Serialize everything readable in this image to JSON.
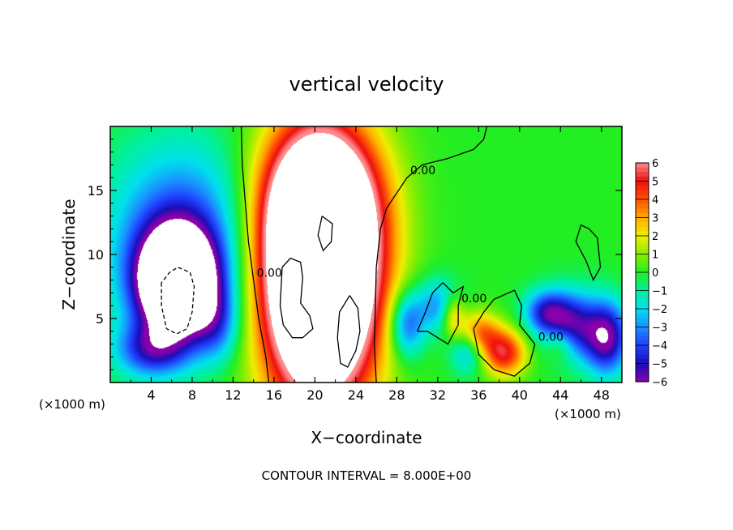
{
  "chart_data": {
    "type": "heatmap",
    "title": "vertical velocity",
    "xlabel": "X−coordinate",
    "ylabel": "Z−coordinate",
    "x_unit_label": "(×1000 m)",
    "footer": "CONTOUR INTERVAL = 8.000E+00",
    "xlim": [
      0,
      50
    ],
    "ylim": [
      0,
      20
    ],
    "x_ticks": [
      4,
      8,
      12,
      16,
      20,
      24,
      28,
      32,
      36,
      40,
      44,
      48
    ],
    "y_ticks": [
      5,
      10,
      15
    ],
    "colorbar": {
      "min": -6,
      "max": 6,
      "ticks": [
        6,
        5,
        4,
        3,
        2,
        1,
        0,
        -1,
        -2,
        -3,
        -4,
        -5,
        -6
      ],
      "tick_labels": [
        "6",
        "5",
        "4",
        "3",
        "2",
        "1",
        "0",
        "−1",
        "−2",
        "−3",
        "−4",
        "−5",
        "−6"
      ],
      "stops": [
        {
          "v": -6,
          "color": "#8800aa"
        },
        {
          "v": -5,
          "color": "#1a0fb8"
        },
        {
          "v": -4,
          "color": "#2040ff"
        },
        {
          "v": -3,
          "color": "#1a90ff"
        },
        {
          "v": -2,
          "color": "#00e0ee"
        },
        {
          "v": -1,
          "color": "#00f0a0"
        },
        {
          "v": 0,
          "color": "#22ee22"
        },
        {
          "v": 1,
          "color": "#88ee00"
        },
        {
          "v": 2,
          "color": "#eeee00"
        },
        {
          "v": 3,
          "color": "#ffaa00"
        },
        {
          "v": 4,
          "color": "#ff5000"
        },
        {
          "v": 5,
          "color": "#ee1010"
        },
        {
          "v": 6,
          "color": "#ff8888"
        }
      ]
    },
    "field_features": [
      {
        "x": 6.5,
        "z": 7.8,
        "amp": -13,
        "sx": 2.6,
        "sz": 2.8,
        "desc": "strong downdraft core (white, beyond -6)"
      },
      {
        "x": 7,
        "z": 11.5,
        "amp": -4,
        "sx": 5,
        "sz": 5
      },
      {
        "x": 4,
        "z": 2.5,
        "amp": -4,
        "sx": 2.5,
        "sz": 1.5
      },
      {
        "x": 10.5,
        "z": 4.5,
        "amp": -2.5,
        "sx": 1.5,
        "sz": 2
      },
      {
        "x": 20.5,
        "z": 8.5,
        "amp": 17,
        "sx": 3.8,
        "sz": 6.8,
        "desc": "strong updraft core (white, beyond 6)"
      },
      {
        "x": 20.5,
        "z": 14,
        "amp": 5,
        "sx": 4,
        "sz": 4
      },
      {
        "x": 19.8,
        "z": 7.5,
        "amp": -10,
        "sx": 1.1,
        "sz": 1.6
      },
      {
        "x": 29,
        "z": 4.5,
        "amp": -4,
        "sx": 1.2,
        "sz": 1.8
      },
      {
        "x": 32,
        "z": 6,
        "amp": -3,
        "sx": 1.5,
        "sz": 1.5
      },
      {
        "x": 33.5,
        "z": 5.2,
        "amp": 3,
        "sx": 0.8,
        "sz": 1.2
      },
      {
        "x": 36,
        "z": 3.8,
        "amp": 4,
        "sx": 1.4,
        "sz": 1.2
      },
      {
        "x": 38.5,
        "z": 2.3,
        "amp": 5,
        "sx": 1.5,
        "sz": 1.3
      },
      {
        "x": 35,
        "z": 2.5,
        "amp": -3,
        "sx": 1.2,
        "sz": 1.2
      },
      {
        "x": 42.5,
        "z": 5.5,
        "amp": -4,
        "sx": 1.5,
        "sz": 1.2
      },
      {
        "x": 45,
        "z": 4.5,
        "amp": -5,
        "sx": 1.8,
        "sz": 1.8
      },
      {
        "x": 48.5,
        "z": 3.5,
        "amp": -6,
        "sx": 1.5,
        "sz": 2
      },
      {
        "x": 44,
        "z": 3,
        "amp": 2,
        "sx": 1,
        "sz": 1
      }
    ],
    "contours": [
      {
        "label": "0.00",
        "style": "solid",
        "points": [
          [
            12.8,
            20
          ],
          [
            12.9,
            17
          ],
          [
            13.2,
            14
          ],
          [
            13.5,
            11
          ],
          [
            14,
            8
          ],
          [
            14.5,
            5
          ],
          [
            15.2,
            2
          ],
          [
            15.5,
            0
          ]
        ]
      },
      {
        "label": "0.00",
        "style": "solid",
        "points": [
          [
            26,
            0
          ],
          [
            25.8,
            3
          ],
          [
            25.9,
            6
          ],
          [
            26,
            9
          ],
          [
            26.4,
            12
          ],
          [
            27,
            13.6
          ],
          [
            29,
            16
          ],
          [
            30.5,
            17
          ],
          [
            33,
            17.5
          ],
          [
            35.5,
            18.2
          ],
          [
            36.5,
            19
          ],
          [
            36.8,
            20
          ]
        ]
      },
      {
        "label": "",
        "style": "solid",
        "points": [
          [
            16.6,
            6
          ],
          [
            16.9,
            4.5
          ],
          [
            17.8,
            3.5
          ],
          [
            18.8,
            3.5
          ],
          [
            19.8,
            4.2
          ],
          [
            19.5,
            5.2
          ],
          [
            18.6,
            6.2
          ],
          [
            18.8,
            8.2
          ],
          [
            18.6,
            9.4
          ],
          [
            17.6,
            9.7
          ],
          [
            16.8,
            9
          ],
          [
            16.6,
            6
          ]
        ]
      },
      {
        "label": "",
        "style": "solid",
        "points": [
          [
            23.4,
            6.8
          ],
          [
            24.2,
            5.8
          ],
          [
            24.4,
            4
          ],
          [
            24,
            2.5
          ],
          [
            23.2,
            1.2
          ],
          [
            22.5,
            1.5
          ],
          [
            22.2,
            3.5
          ],
          [
            22.4,
            5.5
          ],
          [
            23.4,
            6.8
          ]
        ]
      },
      {
        "label": "",
        "style": "solid",
        "points": [
          [
            20.7,
            13
          ],
          [
            21.7,
            12.4
          ],
          [
            21.6,
            11
          ],
          [
            20.8,
            10.3
          ],
          [
            20.3,
            11.5
          ],
          [
            20.7,
            13
          ]
        ]
      },
      {
        "label": "",
        "style": "dashed",
        "points": [
          [
            5,
            7.8
          ],
          [
            5,
            6
          ],
          [
            5.5,
            4.2
          ],
          [
            6.5,
            3.8
          ],
          [
            7.5,
            4.2
          ],
          [
            8,
            5.5
          ],
          [
            8.2,
            7.5
          ],
          [
            7.8,
            8.6
          ],
          [
            6.6,
            9
          ],
          [
            5.8,
            8.6
          ],
          [
            5,
            7.8
          ]
        ]
      },
      {
        "label": "0.00",
        "style": "solid",
        "points": [
          [
            30,
            4
          ],
          [
            30.8,
            5.5
          ],
          [
            31.5,
            7
          ],
          [
            32.5,
            7.8
          ],
          [
            33.5,
            7
          ],
          [
            34.5,
            7.5
          ],
          [
            34,
            6
          ],
          [
            34,
            4.5
          ],
          [
            33,
            3
          ],
          [
            32,
            3.5
          ],
          [
            31,
            4
          ],
          [
            30,
            4
          ]
        ]
      },
      {
        "label": "0.00",
        "style": "solid",
        "points": [
          [
            35.5,
            4.2
          ],
          [
            36.5,
            5.5
          ],
          [
            37.5,
            6.5
          ],
          [
            39.5,
            7.2
          ],
          [
            40.2,
            6
          ],
          [
            40,
            4.5
          ],
          [
            41.5,
            3
          ],
          [
            41,
            1.5
          ],
          [
            39.5,
            0.5
          ],
          [
            37.5,
            1
          ],
          [
            36,
            2.2
          ],
          [
            35.5,
            4.2
          ]
        ]
      },
      {
        "label": "",
        "style": "solid",
        "points": [
          [
            45.5,
            11
          ],
          [
            46,
            12.3
          ],
          [
            46.8,
            12
          ],
          [
            47.6,
            11.3
          ],
          [
            47.9,
            9
          ],
          [
            47.2,
            8
          ],
          [
            46.5,
            9.5
          ],
          [
            45.5,
            11
          ]
        ]
      }
    ]
  }
}
